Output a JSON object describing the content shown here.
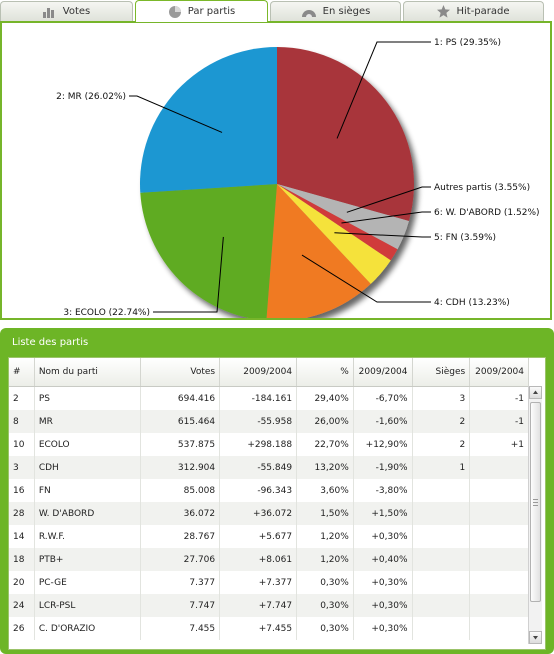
{
  "tabs": [
    {
      "label": "Votes",
      "icon": "bar-chart-icon",
      "active": false
    },
    {
      "label": "Par partis",
      "icon": "pie-chart-icon",
      "active": true
    },
    {
      "label": "En sièges",
      "icon": "hemicycle-icon",
      "active": false
    },
    {
      "label": "Hit-parade",
      "icon": "star-icon",
      "active": false
    }
  ],
  "chart_data": {
    "type": "pie",
    "slices": [
      {
        "label": "1: PS (29.35%)",
        "value": 29.35,
        "color": "#a8363a"
      },
      {
        "label": "Autres partis (3.55%)",
        "value": 3.55,
        "color": "#b4b4b4"
      },
      {
        "label": "6: W. D'ABORD (1.52%)",
        "value": 1.52,
        "color": "#d03a3a"
      },
      {
        "label": "5: FN (3.59%)",
        "value": 3.59,
        "color": "#f5e23a"
      },
      {
        "label": "4: CDH (13.23%)",
        "value": 13.23,
        "color": "#f07a22"
      },
      {
        "label": "3: ECOLO (22.74%)",
        "value": 22.74,
        "color": "#5fab22"
      },
      {
        "label": "2: MR (26.02%)",
        "value": 26.02,
        "color": "#1c97d2"
      }
    ]
  },
  "list": {
    "title": "Liste des partis",
    "columns": [
      "#",
      "Nom du parti",
      "Votes",
      "2009/2004",
      "%",
      "2009/2004",
      "Sièges",
      "2009/2004"
    ],
    "rows": [
      [
        "2",
        "PS",
        "694.416",
        "-184.161",
        "29,40%",
        "-6,70%",
        "3",
        "-1"
      ],
      [
        "8",
        "MR",
        "615.464",
        "-55.958",
        "26,00%",
        "-1,60%",
        "2",
        "-1"
      ],
      [
        "10",
        "ECOLO",
        "537.875",
        "+298.188",
        "22,70%",
        "+12,90%",
        "2",
        "+1"
      ],
      [
        "3",
        "CDH",
        "312.904",
        "-55.849",
        "13,20%",
        "-1,90%",
        "1",
        ""
      ],
      [
        "16",
        "FN",
        "85.008",
        "-96.343",
        "3,60%",
        "-3,80%",
        "",
        ""
      ],
      [
        "28",
        "W. D'ABORD",
        "36.072",
        "+36.072",
        "1,50%",
        "+1,50%",
        "",
        ""
      ],
      [
        "14",
        "R.W.F.",
        "28.767",
        "+5.677",
        "1,20%",
        "+0,30%",
        "",
        ""
      ],
      [
        "18",
        "PTB+",
        "27.706",
        "+8.061",
        "1,20%",
        "+0,40%",
        "",
        ""
      ],
      [
        "20",
        "PC-GE",
        "7.377",
        "+7.377",
        "0,30%",
        "+0,30%",
        "",
        ""
      ],
      [
        "24",
        "LCR-PSL",
        "7.747",
        "+7.747",
        "0,30%",
        "+0,30%",
        "",
        ""
      ],
      [
        "26",
        "C. D'ORAZIO",
        "7.455",
        "+7.455",
        "0,30%",
        "+0,30%",
        "",
        ""
      ]
    ]
  }
}
